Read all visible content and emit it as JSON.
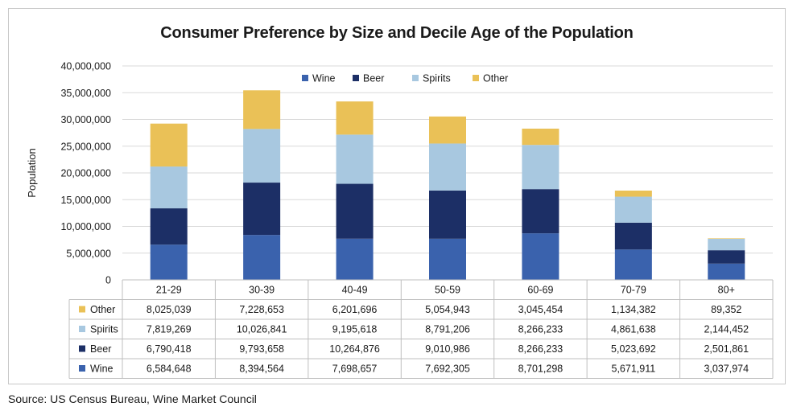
{
  "chart_data": {
    "type": "bar",
    "stacked": true,
    "title": "Consumer Preference by Size and Decile Age of the Population",
    "ylabel": "Population",
    "xlabel": "",
    "ylim": [
      0,
      40000000
    ],
    "yticks": [
      "0",
      "5,000,000",
      "10,000,000",
      "15,000,000",
      "20,000,000",
      "25,000,000",
      "30,000,000",
      "35,000,000",
      "40,000,000"
    ],
    "ytick_values": [
      0,
      5000000,
      10000000,
      15000000,
      20000000,
      25000000,
      30000000,
      35000000,
      40000000
    ],
    "grid": true,
    "legend_position": "top-center",
    "categories": [
      "21-29",
      "30-39",
      "40-49",
      "50-59",
      "60-69",
      "70-79",
      "80+"
    ],
    "series": [
      {
        "name": "Wine",
        "color": "#3a62ad",
        "values": [
          6584648,
          8394564,
          7698657,
          7692305,
          8701298,
          5671911,
          3037974
        ],
        "labels": [
          "6,584,648",
          "8,394,564",
          "7,698,657",
          "7,692,305",
          "8,701,298",
          "5,671,911",
          "3,037,974"
        ]
      },
      {
        "name": "Beer",
        "color": "#1c2f66",
        "values": [
          6790418,
          9793658,
          10264876,
          9010986,
          8266233,
          5023692,
          2501861
        ],
        "labels": [
          "6,790,418",
          "9,793,658",
          "10,264,876",
          "9,010,986",
          "8,266,233",
          "5,023,692",
          "2,501,861"
        ]
      },
      {
        "name": "Spirits",
        "color": "#a8c8e0",
        "values": [
          7819269,
          10026841,
          9195618,
          8791206,
          8266233,
          4861638,
          2144452
        ],
        "labels": [
          "7,819,269",
          "10,026,841",
          "9,195,618",
          "8,791,206",
          "8,266,233",
          "4,861,638",
          "2,144,452"
        ]
      },
      {
        "name": "Other",
        "color": "#eac157",
        "values": [
          8025039,
          7228653,
          6201696,
          5054943,
          3045454,
          1134382,
          89352
        ],
        "labels": [
          "8,025,039",
          "7,228,653",
          "6,201,696",
          "5,054,943",
          "3,045,454",
          "1,134,382",
          "89,352"
        ]
      }
    ],
    "table_row_order": [
      "Other",
      "Spirits",
      "Beer",
      "Wine"
    ]
  },
  "source": "Source: US Census Bureau, Wine Market Council"
}
